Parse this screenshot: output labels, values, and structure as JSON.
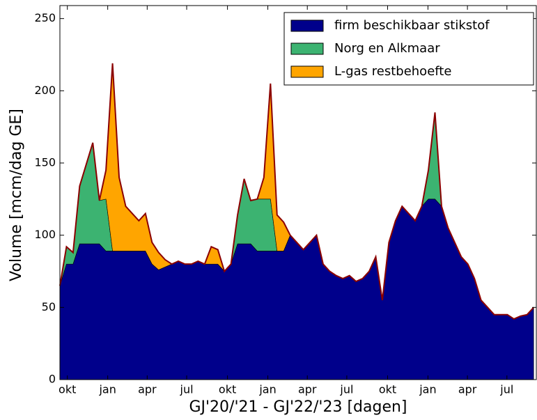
{
  "chart_data": {
    "type": "stacked-area",
    "xlabel": "GJ'20/'21 - GJ'22/'23 [dagen]",
    "ylabel": "Volume [mcm/dag GE]",
    "x": [
      0,
      15,
      30,
      45,
      60,
      75,
      90,
      105,
      120,
      135,
      150,
      165,
      180,
      195,
      210,
      225,
      240,
      255,
      270,
      285,
      300,
      315,
      330,
      345,
      360,
      375,
      390,
      405,
      420,
      435,
      450,
      465,
      480,
      495,
      510,
      525,
      540,
      555,
      570,
      585,
      600,
      615,
      630,
      645,
      660,
      675,
      690,
      705,
      720,
      735,
      750,
      765,
      780,
      795,
      810,
      825,
      840,
      855,
      870,
      885,
      900,
      915,
      930,
      945,
      960,
      975,
      990,
      1005,
      1020,
      1035,
      1050,
      1065,
      1080
    ],
    "series": [
      {
        "name": "firm beschikbaar stikstof",
        "color": "#00008b",
        "values": [
          65,
          80,
          80,
          94,
          94,
          94,
          94,
          89,
          89,
          89,
          89,
          89,
          89,
          89,
          80,
          76,
          78,
          80,
          82,
          80,
          80,
          82,
          80,
          80,
          80,
          75,
          80,
          94,
          94,
          94,
          89,
          89,
          89,
          89,
          89,
          100,
          95,
          90,
          95,
          100,
          80,
          75,
          72,
          70,
          72,
          68,
          70,
          75,
          85,
          55,
          95,
          110,
          120,
          115,
          110,
          120,
          125,
          125,
          120,
          105,
          95,
          85,
          80,
          70,
          55,
          50,
          45,
          45,
          45,
          42,
          44,
          45,
          50
        ]
      },
      {
        "name": "Norg en Alkmaar",
        "color": "#3cb371",
        "values": [
          0,
          12,
          8,
          40,
          55,
          70,
          30,
          36,
          0,
          0,
          0,
          0,
          0,
          0,
          0,
          0,
          0,
          0,
          0,
          0,
          0,
          0,
          0,
          0,
          0,
          0,
          0,
          20,
          45,
          30,
          36,
          36,
          36,
          0,
          0,
          0,
          0,
          0,
          0,
          0,
          0,
          0,
          0,
          0,
          0,
          0,
          0,
          0,
          0,
          0,
          0,
          0,
          0,
          0,
          0,
          0,
          20,
          60,
          0,
          0,
          0,
          0,
          0,
          0,
          0,
          0,
          0,
          0,
          0,
          0,
          0,
          0,
          0
        ]
      },
      {
        "name": "L-gas restbehoefte",
        "color": "#ffa500",
        "values": [
          0,
          0,
          0,
          0,
          0,
          0,
          0,
          20,
          130,
          51,
          31,
          26,
          21,
          26,
          15,
          12,
          5,
          0,
          0,
          0,
          0,
          0,
          0,
          12,
          10,
          0,
          0,
          0,
          0,
          0,
          0,
          15,
          80,
          25,
          20,
          0,
          0,
          0,
          0,
          0,
          0,
          0,
          0,
          0,
          0,
          0,
          0,
          0,
          0,
          0,
          0,
          0,
          0,
          0,
          0,
          0,
          0,
          0,
          0,
          0,
          0,
          0,
          0,
          0,
          0,
          0,
          0,
          0,
          0,
          0,
          0,
          0,
          0
        ]
      }
    ],
    "line_color": "#8b0000",
    "xlim": [
      0,
      1086
    ],
    "xticks": [
      {
        "value": 17,
        "label": "okt"
      },
      {
        "value": 109,
        "label": "jan"
      },
      {
        "value": 199,
        "label": "apr"
      },
      {
        "value": 289,
        "label": "jul"
      },
      {
        "value": 382,
        "label": "okt"
      },
      {
        "value": 474,
        "label": "jan"
      },
      {
        "value": 564,
        "label": "apr"
      },
      {
        "value": 654,
        "label": "jul"
      },
      {
        "value": 747,
        "label": "okt"
      },
      {
        "value": 839,
        "label": "jan"
      },
      {
        "value": 929,
        "label": "apr"
      },
      {
        "value": 1019,
        "label": "jul"
      }
    ],
    "ylim": [
      0,
      259
    ],
    "yticks": [
      0,
      50,
      100,
      150,
      200,
      250
    ],
    "legend": "upper-right"
  }
}
